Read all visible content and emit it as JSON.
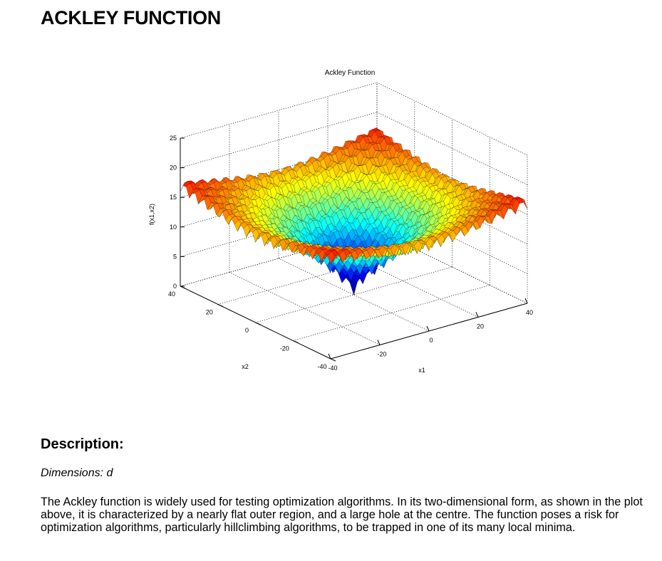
{
  "page": {
    "title": "ACKLEY FUNCTION"
  },
  "figure": {
    "title": "Ackley Function",
    "xlabel": "x1",
    "ylabel": "x2",
    "zlabel": "f(x1,x2)",
    "x_ticks": [
      "-40",
      "-20",
      "0",
      "20",
      "40"
    ],
    "y_ticks": [
      "-40",
      "-20",
      "0",
      "20",
      "40"
    ],
    "z_ticks": [
      "0",
      "5",
      "10",
      "15",
      "20",
      "25"
    ],
    "colormap": [
      "#00008f",
      "#0000ff",
      "#00ffff",
      "#ffff00",
      "#ff0000",
      "#800000"
    ]
  },
  "chart_data": {
    "type": "surface",
    "function": "f(x1,x2) = -20*exp(-0.2*sqrt(0.5*(x1^2+x2^2))) - exp(0.5*(cos(2*pi*x1)+cos(2*pi*x2))) + 20 + e",
    "title": "Ackley Function",
    "xlabel": "x1",
    "ylabel": "x2",
    "zlabel": "f(x1,x2)",
    "xlim": [
      -40,
      40
    ],
    "ylim": [
      -40,
      40
    ],
    "zlim": [
      0,
      25
    ],
    "grid": true,
    "colormap": "jet"
  },
  "description": {
    "heading": "Description:",
    "dimensions": "Dimensions: d",
    "text": "The Ackley function is widely used for testing optimization algorithms. In its two-dimensional form, as shown in the plot above, it is characterized by a nearly flat outer region, and a large hole at the centre. The function poses a risk for optimization algorithms, particularly hillclimbing algorithms, to be trapped in one of its many local minima."
  }
}
